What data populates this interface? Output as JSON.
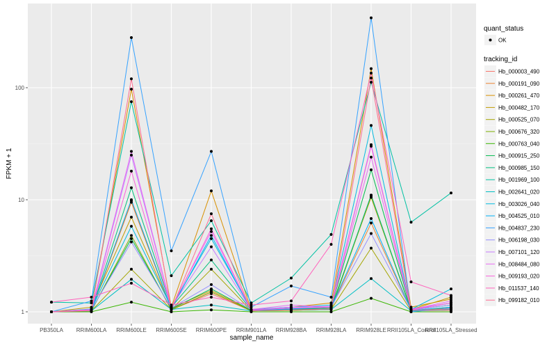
{
  "chart_data": {
    "type": "line",
    "title": "",
    "xlabel": "sample_name",
    "ylabel": "FPKM + 1",
    "yscale": "log10",
    "ylim": [
      0.9,
      500
    ],
    "yticks": [
      1,
      10,
      100
    ],
    "ytick_labels": [
      "1",
      "10",
      "100"
    ],
    "grid": true,
    "legend_position": "right",
    "categories": [
      "PB350LA",
      "RRIM600LA",
      "RRIM600LE",
      "RRIM600SE",
      "RRIM600PE",
      "RRIM901LA",
      "RRIM928BA",
      "RRIM928LA",
      "RRIM928LE",
      "RRII105LA_Control",
      "RRII105LA_Stressed"
    ],
    "shape_legend": {
      "title": "quant_status",
      "entries": [
        "OK"
      ]
    },
    "color_legend_title": "tracking_id",
    "series": [
      {
        "name": "Hb_000003_490",
        "color": "#F8766D",
        "values": [
          1.0,
          1.02,
          9.8,
          1.05,
          1.45,
          1.02,
          1.03,
          1.05,
          11.0,
          1.02,
          1.03
        ]
      },
      {
        "name": "Hb_000191_090",
        "color": "#EA8331",
        "values": [
          1.0,
          1.02,
          9.5,
          1.05,
          1.5,
          1.02,
          1.04,
          1.08,
          6.2,
          1.03,
          1.05
        ]
      },
      {
        "name": "Hb_000261_470",
        "color": "#D89000",
        "values": [
          1.0,
          1.05,
          97,
          1.1,
          12.0,
          1.04,
          1.1,
          1.2,
          148,
          1.1,
          1.3
        ]
      },
      {
        "name": "Hb_000482_170",
        "color": "#C09B00",
        "values": [
          1.0,
          1.1,
          7.0,
          1.08,
          1.55,
          1.03,
          1.05,
          1.1,
          10.5,
          1.05,
          1.35
        ]
      },
      {
        "name": "Hb_000525_070",
        "color": "#A3A500",
        "values": [
          1.0,
          1.02,
          2.4,
          1.05,
          2.4,
          1.02,
          1.03,
          1.05,
          3.7,
          1.02,
          1.1
        ]
      },
      {
        "name": "Hb_000676_320",
        "color": "#7CAE00",
        "values": [
          1.0,
          1.02,
          4.8,
          1.04,
          1.5,
          1.02,
          1.03,
          1.05,
          10.8,
          1.02,
          1.08
        ]
      },
      {
        "name": "Hb_000763_040",
        "color": "#39B600",
        "values": [
          1.0,
          1.0,
          1.22,
          1.0,
          1.04,
          1.0,
          1.0,
          1.0,
          1.32,
          1.0,
          1.0
        ]
      },
      {
        "name": "Hb_000915_250",
        "color": "#00BB4E",
        "values": [
          1.0,
          1.03,
          4.5,
          1.06,
          1.6,
          1.03,
          1.06,
          1.1,
          18.5,
          1.05,
          1.2
        ]
      },
      {
        "name": "Hb_000985_150",
        "color": "#00BF7D",
        "values": [
          1.0,
          1.03,
          12.8,
          1.1,
          2.9,
          1.04,
          1.05,
          1.08,
          11.0,
          1.04,
          1.15
        ]
      },
      {
        "name": "Hb_001969_100",
        "color": "#00C1A3",
        "values": [
          1.22,
          1.2,
          75,
          2.1,
          6.5,
          1.2,
          2.0,
          4.9,
          112,
          6.3,
          11.5
        ]
      },
      {
        "name": "Hb_002641_020",
        "color": "#00BFC4",
        "values": [
          1.0,
          1.02,
          1.95,
          1.05,
          1.15,
          1.02,
          1.04,
          1.05,
          1.98,
          1.02,
          1.05
        ]
      },
      {
        "name": "Hb_003026_040",
        "color": "#00BAE0",
        "values": [
          1.0,
          1.06,
          5.8,
          1.1,
          4.5,
          1.05,
          1.1,
          1.15,
          46,
          1.05,
          1.6
        ]
      },
      {
        "name": "Hb_004525_010",
        "color": "#00B0F6",
        "values": [
          1.0,
          1.03,
          10.0,
          1.06,
          4.8,
          1.03,
          1.06,
          1.1,
          6.8,
          1.03,
          1.1
        ]
      },
      {
        "name": "Hb_004837_230",
        "color": "#35A2FF",
        "values": [
          1.0,
          1.25,
          280,
          3.5,
          27,
          1.1,
          1.7,
          1.35,
          420,
          1.0,
          1.08
        ]
      },
      {
        "name": "Hb_006198_030",
        "color": "#9590FF",
        "values": [
          1.0,
          1.05,
          4.2,
          1.08,
          1.75,
          1.04,
          1.08,
          1.1,
          5.0,
          1.04,
          1.15
        ]
      },
      {
        "name": "Hb_007101_120",
        "color": "#C77CFF",
        "values": [
          1.0,
          1.04,
          25,
          1.1,
          3.8,
          1.04,
          1.1,
          1.12,
          31,
          1.06,
          1.2
        ]
      },
      {
        "name": "Hb_008484_080",
        "color": "#E76BF3",
        "values": [
          1.0,
          1.05,
          27,
          1.1,
          5.2,
          1.05,
          1.15,
          1.1,
          24,
          1.05,
          1.25
        ]
      },
      {
        "name": "Hb_009193_020",
        "color": "#FA62DB",
        "values": [
          1.0,
          1.04,
          18,
          1.08,
          5.5,
          1.04,
          1.08,
          1.1,
          30,
          1.04,
          1.2
        ]
      },
      {
        "name": "Hb_011537_140",
        "color": "#FF62BC",
        "values": [
          1.22,
          1.35,
          1.8,
          1.15,
          1.35,
          1.15,
          1.25,
          4.0,
          135,
          1.85,
          1.4
        ]
      },
      {
        "name": "Hb_099182_010",
        "color": "#FF6C91",
        "values": [
          1.0,
          1.02,
          120,
          1.05,
          7.5,
          1.02,
          1.04,
          1.06,
          122,
          1.03,
          1.06
        ]
      }
    ]
  }
}
